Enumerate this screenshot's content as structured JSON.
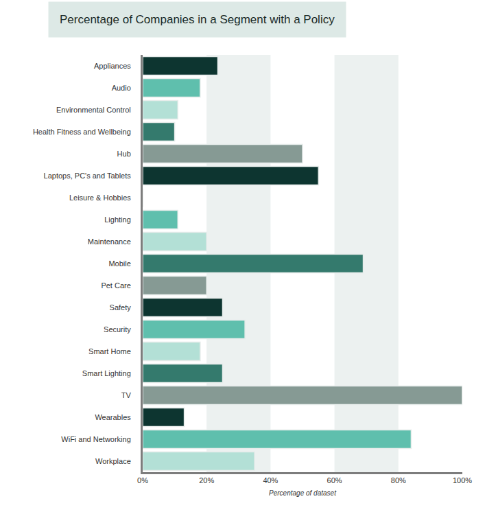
{
  "chart_data": {
    "type": "bar",
    "orientation": "horizontal",
    "title": "Percentage of Companies in a Segment with a Policy",
    "xlabel": "Percentage of dataset",
    "categories": [
      "Appliances",
      "Audio",
      "Environmental Control",
      "Health Fitness and Wellbeing",
      "Hub",
      "Laptops, PC's and Tablets",
      "Leisure & Hobbies",
      "Lighting",
      "Maintenance",
      "Mobile",
      "Pet Care",
      "Safety",
      "Security",
      "Smart Home",
      "Smart Lighting",
      "TV",
      "Wearables",
      "WiFi and Networking",
      "Workplace"
    ],
    "values": [
      23.5,
      18,
      11,
      10,
      50,
      55,
      0,
      11,
      20,
      69,
      20,
      25,
      32,
      18,
      25,
      100,
      13,
      84,
      35
    ],
    "colors": [
      "#0d3530",
      "#5fbfad",
      "#b3e0d6",
      "#347a6d",
      "#869a94",
      "#0d3530",
      "#5fbfad",
      "#5fbfad",
      "#b3e0d6",
      "#347a6d",
      "#869a94",
      "#0d3530",
      "#5fbfad",
      "#b3e0d6",
      "#347a6d",
      "#869a94",
      "#0d3530",
      "#5fbfad",
      "#b3e0d6"
    ],
    "xlim": [
      0,
      100
    ],
    "xticks": [
      {
        "value": 0,
        "label": "0%"
      },
      {
        "value": 20,
        "label": "20%"
      },
      {
        "value": 40,
        "label": "40%"
      },
      {
        "value": 60,
        "label": "60%"
      },
      {
        "value": 80,
        "label": "80%"
      },
      {
        "value": 100,
        "label": "100%"
      }
    ],
    "grid": true
  }
}
